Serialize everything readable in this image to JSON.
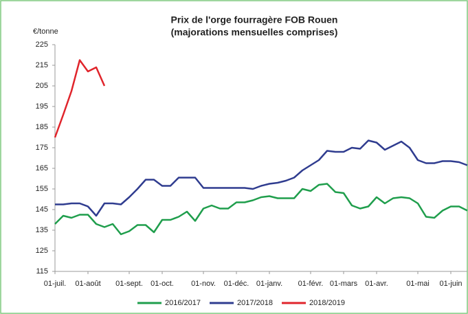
{
  "chart_data": {
    "type": "line",
    "title": "Prix de l'orge fourragère FOB Rouen",
    "subtitle": "(majorations mensuelles comprises)",
    "y_label": "€/tonne",
    "categories": [
      "01-juil.",
      null,
      null,
      null,
      "01-août",
      null,
      null,
      null,
      null,
      "01-sept.",
      null,
      null,
      null,
      "01-oct.",
      null,
      null,
      null,
      null,
      "01-nov.",
      null,
      null,
      null,
      "01-déc.",
      null,
      null,
      null,
      "01-janv.",
      null,
      null,
      null,
      null,
      "01-févr.",
      null,
      null,
      null,
      "01-mars",
      null,
      null,
      null,
      "01-avr.",
      null,
      null,
      null,
      null,
      "01-mai",
      null,
      null,
      null,
      "01-juin",
      null,
      null
    ],
    "ylim": [
      115,
      225
    ],
    "yticks": [
      115,
      125,
      135,
      145,
      155,
      165,
      175,
      185,
      195,
      205,
      215,
      225
    ],
    "grid": false,
    "legend": "bottom",
    "series": [
      {
        "name": "2016/2017",
        "color": "#1f9e4c",
        "values": [
          138,
          142,
          141,
          142.5,
          142.5,
          138,
          136.5,
          138,
          133,
          134.5,
          137.5,
          137.5,
          134,
          140,
          140,
          141.5,
          144,
          139.5,
          145.5,
          147,
          145.5,
          145.5,
          148.5,
          148.5,
          149.5,
          151,
          151.5,
          150.5,
          150.5,
          150.5,
          155,
          154,
          157,
          157.5,
          153.5,
          153,
          147,
          145.5,
          146.5,
          151,
          148,
          150.5,
          151,
          150.5,
          148,
          141.5,
          141,
          144.5,
          146.5,
          146.5,
          144.5
        ]
      },
      {
        "name": "2017/2018",
        "color": "#2f3c8f",
        "values": [
          147.5,
          147.5,
          148,
          148,
          146.5,
          142,
          148,
          148,
          147.5,
          151,
          155,
          159.5,
          159.5,
          156.5,
          156.5,
          160.5,
          160.5,
          160.5,
          155.5,
          155.5,
          155.5,
          155.5,
          155.5,
          155.5,
          155,
          156.5,
          157.5,
          158,
          159,
          160.5,
          164,
          166.5,
          169,
          173.5,
          173,
          173,
          175,
          174.5,
          178.5,
          177.5,
          174,
          176,
          178,
          175,
          169,
          167.5,
          167.5,
          168.5,
          168.5,
          168,
          166.5
        ]
      },
      {
        "name": "2018/2019",
        "color": "#e0242b",
        "values": [
          180,
          191,
          202.5,
          217.5,
          212,
          214,
          205,
          null,
          null,
          null,
          null,
          null,
          null,
          null,
          null,
          null,
          null,
          null,
          null,
          null,
          null,
          null,
          null,
          null,
          null,
          null,
          null,
          null,
          null,
          null,
          null,
          null,
          null,
          null,
          null,
          null,
          null,
          null,
          null,
          null,
          null,
          null,
          null,
          null,
          null,
          null,
          null,
          null,
          null,
          null,
          null
        ]
      }
    ]
  }
}
